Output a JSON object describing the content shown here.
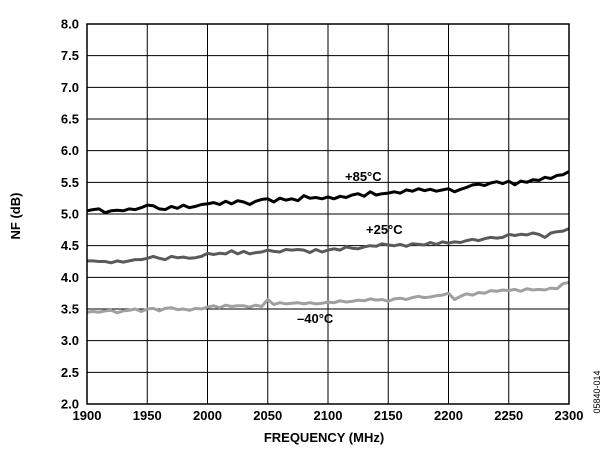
{
  "chart_data": {
    "type": "line",
    "xlabel": "FREQUENCY (MHz)",
    "ylabel": "NF (dB)",
    "xlim": [
      1900,
      2300
    ],
    "ylim": [
      2.0,
      8.0
    ],
    "xticks": [
      1900,
      1950,
      2000,
      2050,
      2100,
      2150,
      2200,
      2250,
      2300
    ],
    "yticks": [
      "2.0",
      "2.5",
      "3.0",
      "3.5",
      "4.0",
      "4.5",
      "5.0",
      "5.5",
      "6.0",
      "6.5",
      "7.0",
      "7.5",
      "8.0"
    ],
    "grid": true,
    "figure_id": "05840-014",
    "x": [
      1900,
      1905,
      1910,
      1915,
      1920,
      1925,
      1930,
      1935,
      1940,
      1945,
      1950,
      1955,
      1960,
      1965,
      1970,
      1975,
      1980,
      1985,
      1990,
      1995,
      2000,
      2005,
      2010,
      2015,
      2020,
      2025,
      2030,
      2035,
      2040,
      2045,
      2050,
      2055,
      2060,
      2065,
      2070,
      2075,
      2080,
      2085,
      2090,
      2095,
      2100,
      2105,
      2110,
      2115,
      2120,
      2125,
      2130,
      2135,
      2140,
      2145,
      2150,
      2155,
      2160,
      2165,
      2170,
      2175,
      2180,
      2185,
      2190,
      2195,
      2200,
      2205,
      2210,
      2215,
      2220,
      2225,
      2230,
      2235,
      2240,
      2245,
      2250,
      2255,
      2260,
      2265,
      2270,
      2275,
      2280,
      2285,
      2290,
      2295,
      2300
    ],
    "series": [
      {
        "name": "+85°C",
        "color": "#000000",
        "values": [
          5.05,
          5.07,
          5.08,
          5.02,
          5.05,
          5.06,
          5.05,
          5.08,
          5.07,
          5.1,
          5.14,
          5.13,
          5.08,
          5.07,
          5.12,
          5.09,
          5.14,
          5.1,
          5.12,
          5.15,
          5.16,
          5.18,
          5.15,
          5.2,
          5.16,
          5.21,
          5.19,
          5.15,
          5.2,
          5.23,
          5.24,
          5.19,
          5.25,
          5.22,
          5.24,
          5.21,
          5.29,
          5.25,
          5.26,
          5.24,
          5.27,
          5.24,
          5.28,
          5.26,
          5.3,
          5.32,
          5.28,
          5.35,
          5.3,
          5.32,
          5.33,
          5.35,
          5.33,
          5.38,
          5.36,
          5.4,
          5.37,
          5.39,
          5.36,
          5.38,
          5.4,
          5.35,
          5.39,
          5.42,
          5.46,
          5.47,
          5.45,
          5.49,
          5.51,
          5.48,
          5.52,
          5.46,
          5.52,
          5.5,
          5.54,
          5.53,
          5.58,
          5.56,
          5.61,
          5.62,
          5.67
        ]
      },
      {
        "name": "+25°C",
        "color": "#5a5a5a",
        "values": [
          4.26,
          4.26,
          4.25,
          4.25,
          4.23,
          4.26,
          4.24,
          4.26,
          4.28,
          4.28,
          4.3,
          4.33,
          4.3,
          4.28,
          4.33,
          4.31,
          4.32,
          4.3,
          4.31,
          4.33,
          4.38,
          4.36,
          4.38,
          4.37,
          4.42,
          4.37,
          4.41,
          4.37,
          4.39,
          4.4,
          4.43,
          4.41,
          4.4,
          4.44,
          4.43,
          4.44,
          4.43,
          4.39,
          4.44,
          4.4,
          4.43,
          4.45,
          4.43,
          4.48,
          4.46,
          4.45,
          4.48,
          4.5,
          4.49,
          4.53,
          4.51,
          4.5,
          4.52,
          4.49,
          4.53,
          4.52,
          4.51,
          4.55,
          4.52,
          4.56,
          4.54,
          4.56,
          4.55,
          4.58,
          4.6,
          4.58,
          4.61,
          4.63,
          4.62,
          4.63,
          4.68,
          4.66,
          4.68,
          4.67,
          4.7,
          4.68,
          4.63,
          4.7,
          4.72,
          4.73,
          4.77
        ]
      },
      {
        "name": "–40°C",
        "color": "#a0a0a0",
        "values": [
          3.45,
          3.46,
          3.45,
          3.47,
          3.48,
          3.44,
          3.47,
          3.48,
          3.5,
          3.46,
          3.5,
          3.51,
          3.47,
          3.51,
          3.52,
          3.49,
          3.5,
          3.48,
          3.51,
          3.5,
          3.53,
          3.55,
          3.52,
          3.56,
          3.54,
          3.55,
          3.55,
          3.53,
          3.56,
          3.54,
          3.65,
          3.57,
          3.6,
          3.58,
          3.59,
          3.6,
          3.58,
          3.6,
          3.58,
          3.59,
          3.61,
          3.6,
          3.63,
          3.61,
          3.62,
          3.64,
          3.63,
          3.66,
          3.64,
          3.65,
          3.62,
          3.66,
          3.67,
          3.65,
          3.68,
          3.7,
          3.68,
          3.69,
          3.71,
          3.72,
          3.75,
          3.65,
          3.7,
          3.74,
          3.72,
          3.76,
          3.75,
          3.79,
          3.78,
          3.8,
          3.79,
          3.81,
          3.78,
          3.82,
          3.8,
          3.81,
          3.8,
          3.83,
          3.82,
          3.9,
          3.92
        ]
      }
    ]
  }
}
